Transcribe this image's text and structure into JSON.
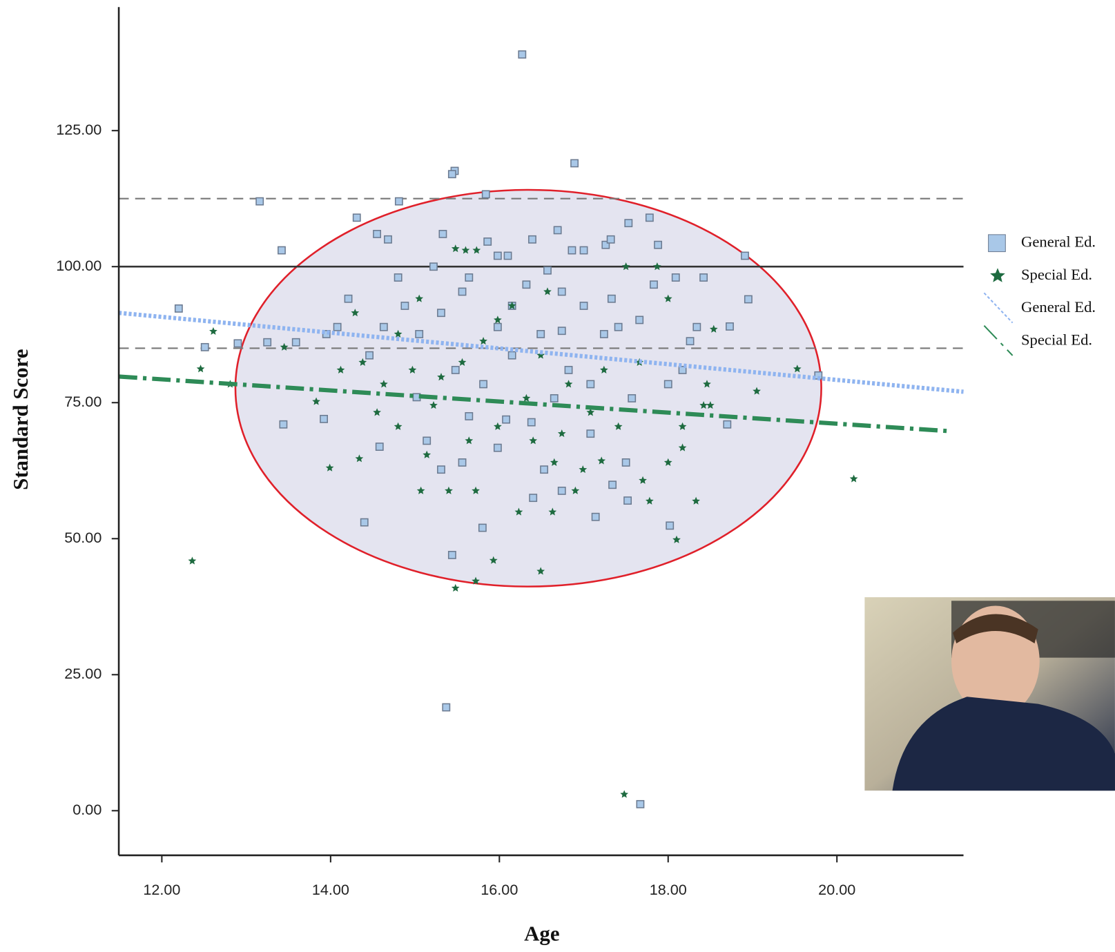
{
  "chart_data": {
    "type": "scatter",
    "xlabel": "Age",
    "ylabel": "Standard Score",
    "xlim": [
      11.49,
      21.5
    ],
    "ylim": [
      -8.2,
      147.7
    ],
    "xticks": [
      {
        "value": 12,
        "label": "12.00"
      },
      {
        "value": 14,
        "label": "14.00"
      },
      {
        "value": 16,
        "label": "16.00"
      },
      {
        "value": 18,
        "label": "18.00"
      },
      {
        "value": 20,
        "label": "20.00"
      }
    ],
    "yticks": [
      {
        "value": 0,
        "label": "0.00"
      },
      {
        "value": 25,
        "label": "25.00"
      },
      {
        "value": 50,
        "label": "50.00"
      },
      {
        "value": 75,
        "label": "75.00"
      },
      {
        "value": 100,
        "label": "100.00"
      },
      {
        "value": 125,
        "label": "125.00"
      }
    ],
    "reference_lines": [
      {
        "value": 112.5,
        "style": "dashed"
      },
      {
        "value": 100,
        "style": "solid"
      },
      {
        "value": 85,
        "style": "dashed"
      }
    ],
    "series": [
      {
        "name": "General Ed.",
        "marker": "square",
        "color": "#a9c8e8",
        "x": [
          16.27,
          16.89,
          15.47,
          15.44,
          13.16,
          14.81,
          15.84,
          12.2,
          12.51,
          13.42,
          13.44,
          14.31,
          15.37,
          17.67,
          15.44,
          15.8,
          14.4,
          18.91,
          18.95,
          18.73,
          18.7,
          19.78,
          17.78,
          17.53,
          16.69,
          16.39,
          17.88,
          13.92,
          13.95,
          14.55,
          14.68,
          15.33,
          15.86,
          15.98,
          16.1,
          16.86,
          17.0,
          17.26,
          17.32,
          18.02,
          17.14,
          16.53,
          17.34,
          17.52,
          14.58,
          15.02,
          15.56,
          15.64,
          16.08,
          16.38,
          16.65,
          16.82,
          17.08,
          17.24,
          17.41,
          17.66,
          17.83,
          18.09,
          18.34,
          18.42,
          18.26,
          18.17,
          18.0,
          17.57,
          15.98,
          16.15,
          15.56,
          15.31,
          15.05,
          14.88,
          14.63,
          14.46,
          14.21,
          14.08,
          14.8,
          15.22,
          15.64,
          16.32,
          16.57,
          16.74,
          17.0,
          17.33,
          17.08,
          17.5,
          16.4,
          16.74,
          15.98,
          15.31,
          15.14,
          15.48,
          15.81,
          16.15,
          16.49,
          16.74,
          12.9,
          13.25,
          13.59
        ],
        "values": [
          139,
          119,
          117.6,
          117,
          112,
          112,
          113.3,
          92.3,
          85.2,
          103,
          71,
          109,
          19,
          1.2,
          47,
          52,
          53,
          102,
          94,
          89,
          71,
          80,
          109,
          108,
          106.7,
          105,
          104,
          72,
          87.6,
          106,
          105,
          106,
          104.6,
          102,
          102,
          103,
          103,
          104,
          105,
          52.4,
          54,
          62.7,
          59.9,
          57,
          66.9,
          76,
          64,
          72.5,
          71.9,
          71.4,
          75.8,
          81,
          78.4,
          87.6,
          88.9,
          90.2,
          96.7,
          98,
          88.9,
          98,
          86.3,
          81,
          78.4,
          75.8,
          88.9,
          92.8,
          95.4,
          91.5,
          87.6,
          92.8,
          88.9,
          83.7,
          94.1,
          88.9,
          98,
          100,
          98,
          96.7,
          99.3,
          95.4,
          92.8,
          94.1,
          69.3,
          64,
          57.5,
          58.8,
          66.7,
          62.7,
          68,
          81,
          78.4,
          83.7,
          87.6,
          88.2,
          85.9,
          86.1,
          86.1
        ]
      },
      {
        "name": "Special Ed.",
        "marker": "star",
        "color": "#1e6b40",
        "x": [
          12.36,
          12.46,
          12.61,
          12.81,
          13.45,
          13.99,
          15.48,
          15.72,
          15.93,
          16.49,
          17.48,
          18.1,
          18.33,
          19.53,
          20.2,
          19.05,
          18.54,
          18.46,
          15.07,
          15.4,
          15.72,
          16.23,
          16.63,
          16.9,
          17.21,
          17.7,
          17.78,
          18.0,
          18.17,
          17.41,
          17.08,
          16.74,
          16.4,
          15.98,
          15.64,
          15.14,
          14.8,
          14.55,
          14.34,
          14.63,
          14.38,
          14.12,
          13.83,
          14.97,
          15.31,
          15.56,
          15.81,
          15.98,
          16.15,
          16.57,
          15.48,
          15.6,
          15.73,
          17.87,
          17.5,
          18.0,
          16.49,
          16.82,
          17.24,
          17.66,
          18.17,
          18.42,
          18.5,
          15.05,
          14.8,
          14.29,
          15.22,
          16.32,
          16.65,
          16.99
        ],
        "values": [
          45.9,
          81.2,
          88.1,
          78.4,
          85.2,
          63,
          40.9,
          42.2,
          46,
          44,
          3,
          49.8,
          56.9,
          81.2,
          61,
          77.1,
          88.5,
          78.4,
          58.8,
          58.8,
          58.8,
          54.9,
          54.9,
          58.8,
          64.3,
          60.7,
          56.9,
          64,
          66.7,
          70.6,
          73.2,
          69.3,
          68,
          70.6,
          68,
          65.4,
          70.6,
          73.2,
          64.7,
          78.4,
          82.4,
          81,
          75.2,
          81,
          79.7,
          82.4,
          86.3,
          90.2,
          92.8,
          95.4,
          103.3,
          103,
          103,
          100,
          100,
          94.1,
          83.7,
          78.4,
          81,
          82.4,
          70.6,
          74.5,
          74.5,
          94.1,
          87.6,
          91.5,
          74.5,
          75.8,
          64,
          62.7
        ]
      },
      {
        "name": "General Ed.",
        "marker": "line",
        "style": "dotted",
        "color": "#8fb4f0",
        "x": [
          11.49,
          21.5
        ],
        "values": [
          91.5,
          77
        ]
      },
      {
        "name": "Special Ed.",
        "marker": "line",
        "style": "dashdot",
        "color": "#2e8b57",
        "x": [
          11.49,
          21.3
        ],
        "values": [
          79.8,
          69.8
        ]
      }
    ]
  }
}
